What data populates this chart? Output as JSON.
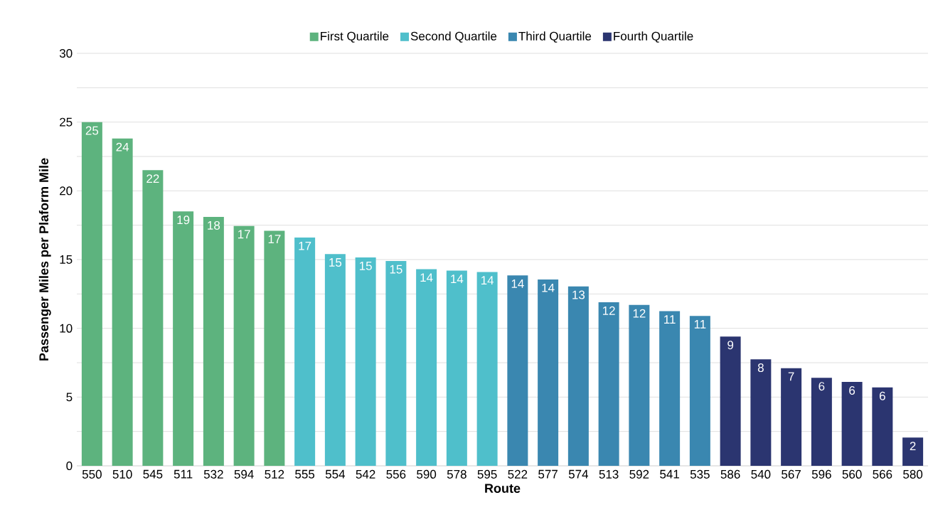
{
  "chart_data": {
    "type": "bar",
    "xlabel": "Route",
    "ylabel": "Passenger Miles per Plaform Mile",
    "categories": [
      "550",
      "510",
      "545",
      "511",
      "532",
      "594",
      "512",
      "555",
      "554",
      "542",
      "556",
      "590",
      "578",
      "595",
      "522",
      "577",
      "574",
      "513",
      "592",
      "541",
      "535",
      "586",
      "540",
      "567",
      "596",
      "560",
      "566",
      "580"
    ],
    "series": [
      {
        "name": "First Quartile",
        "color": "#5db37e",
        "values": [
          25.0,
          23.8,
          21.5,
          18.5,
          18.1,
          17.45,
          17.1,
          null,
          null,
          null,
          null,
          null,
          null,
          null,
          null,
          null,
          null,
          null,
          null,
          null,
          null,
          null,
          null,
          null,
          null,
          null,
          null,
          null
        ],
        "value_labels": [
          "25",
          "24",
          "22",
          "19",
          "18",
          "17",
          "17",
          null,
          null,
          null,
          null,
          null,
          null,
          null,
          null,
          null,
          null,
          null,
          null,
          null,
          null,
          null,
          null,
          null,
          null,
          null,
          null,
          null
        ]
      },
      {
        "name": "Second Quartile",
        "color": "#4fbfcb",
        "values": [
          null,
          null,
          null,
          null,
          null,
          null,
          null,
          16.6,
          15.4,
          15.15,
          14.9,
          14.3,
          14.2,
          14.1,
          null,
          null,
          null,
          null,
          null,
          null,
          null,
          null,
          null,
          null,
          null,
          null,
          null,
          null
        ],
        "value_labels": [
          null,
          null,
          null,
          null,
          null,
          null,
          null,
          "17",
          "15",
          "15",
          "15",
          "14",
          "14",
          "14",
          null,
          null,
          null,
          null,
          null,
          null,
          null,
          null,
          null,
          null,
          null,
          null,
          null,
          null
        ]
      },
      {
        "name": "Third Quartile",
        "color": "#3a87b0",
        "values": [
          null,
          null,
          null,
          null,
          null,
          null,
          null,
          null,
          null,
          null,
          null,
          null,
          null,
          null,
          13.85,
          13.55,
          13.05,
          11.9,
          11.7,
          11.25,
          10.9,
          null,
          null,
          null,
          null,
          null,
          null,
          null
        ],
        "value_labels": [
          null,
          null,
          null,
          null,
          null,
          null,
          null,
          null,
          null,
          null,
          null,
          null,
          null,
          null,
          "14",
          "14",
          "13",
          "12",
          "12",
          "11",
          "11",
          null,
          null,
          null,
          null,
          null,
          null,
          null
        ]
      },
      {
        "name": "Fourth Quartile",
        "color": "#2b3570",
        "values": [
          null,
          null,
          null,
          null,
          null,
          null,
          null,
          null,
          null,
          null,
          null,
          null,
          null,
          null,
          null,
          null,
          null,
          null,
          null,
          null,
          null,
          9.4,
          7.75,
          7.1,
          6.4,
          6.1,
          5.7,
          2.05
        ],
        "value_labels": [
          null,
          null,
          null,
          null,
          null,
          null,
          null,
          null,
          null,
          null,
          null,
          null,
          null,
          null,
          null,
          null,
          null,
          null,
          null,
          null,
          null,
          "9",
          "8",
          "7",
          "6",
          "6",
          "6",
          "2"
        ]
      }
    ],
    "ylim": [
      0,
      30
    ],
    "yticks": [
      0,
      {
        "value": 2.5,
        "label": null
      },
      5,
      {
        "value": 7.5,
        "label": null
      },
      10,
      {
        "value": 12.5,
        "label": null
      },
      15,
      {
        "value": 17.5,
        "label": null
      },
      20,
      {
        "value": 22.5,
        "label": null
      },
      25,
      {
        "value": 27.5,
        "label": null
      },
      30
    ],
    "grid": "y",
    "legend": "top"
  }
}
